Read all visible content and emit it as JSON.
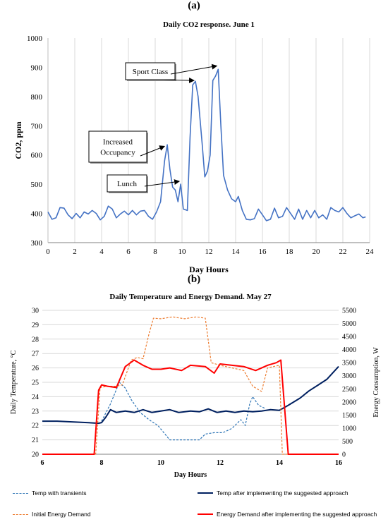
{
  "panel_labels": {
    "a": "(a)",
    "b": "(b)"
  },
  "chart_data": [
    {
      "type": "line",
      "title": "Daily CO2 response. June 1",
      "xlabel": "Day Hours",
      "ylabel": "CO2, ppm",
      "xlim": [
        0,
        24
      ],
      "ylim": [
        300,
        1000
      ],
      "x_ticks": [
        0,
        2,
        4,
        6,
        8,
        10,
        12,
        14,
        16,
        18,
        20,
        22,
        24
      ],
      "y_ticks": [
        300,
        400,
        500,
        600,
        700,
        800,
        900,
        1000
      ],
      "grid": "vertical",
      "series": [
        {
          "color": "#4472c4",
          "points": [
            [
              0,
              405
            ],
            [
              0.3,
              380
            ],
            [
              0.6,
              385
            ],
            [
              0.9,
              420
            ],
            [
              1.2,
              418
            ],
            [
              1.5,
              395
            ],
            [
              1.8,
              382
            ],
            [
              2.1,
              400
            ],
            [
              2.4,
              385
            ],
            [
              2.7,
              405
            ],
            [
              3.0,
              398
            ],
            [
              3.3,
              410
            ],
            [
              3.6,
              400
            ],
            [
              3.9,
              378
            ],
            [
              4.2,
              390
            ],
            [
              4.5,
              425
            ],
            [
              4.8,
              415
            ],
            [
              5.1,
              385
            ],
            [
              5.4,
              398
            ],
            [
              5.7,
              408
            ],
            [
              6.0,
              395
            ],
            [
              6.3,
              410
            ],
            [
              6.6,
              395
            ],
            [
              6.9,
              408
            ],
            [
              7.2,
              410
            ],
            [
              7.5,
              390
            ],
            [
              7.8,
              380
            ],
            [
              8.1,
              405
            ],
            [
              8.4,
              440
            ],
            [
              8.7,
              580
            ],
            [
              8.9,
              635
            ],
            [
              9.1,
              550
            ],
            [
              9.3,
              490
            ],
            [
              9.5,
              480
            ],
            [
              9.7,
              440
            ],
            [
              9.9,
              500
            ],
            [
              10.1,
              415
            ],
            [
              10.4,
              410
            ],
            [
              10.6,
              660
            ],
            [
              10.8,
              840
            ],
            [
              11.0,
              852
            ],
            [
              11.2,
              800
            ],
            [
              11.5,
              640
            ],
            [
              11.7,
              525
            ],
            [
              11.9,
              545
            ],
            [
              12.1,
              600
            ],
            [
              12.3,
              855
            ],
            [
              12.5,
              870
            ],
            [
              12.7,
              893
            ],
            [
              12.9,
              700
            ],
            [
              13.1,
              530
            ],
            [
              13.4,
              480
            ],
            [
              13.7,
              450
            ],
            [
              14.0,
              440
            ],
            [
              14.2,
              458
            ],
            [
              14.5,
              410
            ],
            [
              14.8,
              380
            ],
            [
              15.1,
              378
            ],
            [
              15.4,
              382
            ],
            [
              15.7,
              415
            ],
            [
              16.0,
              395
            ],
            [
              16.3,
              375
            ],
            [
              16.6,
              380
            ],
            [
              16.9,
              418
            ],
            [
              17.2,
              385
            ],
            [
              17.5,
              390
            ],
            [
              17.8,
              420
            ],
            [
              18.1,
              400
            ],
            [
              18.4,
              380
            ],
            [
              18.7,
              415
            ],
            [
              19.0,
              380
            ],
            [
              19.3,
              410
            ],
            [
              19.6,
              385
            ],
            [
              19.9,
              410
            ],
            [
              20.2,
              385
            ],
            [
              20.5,
              395
            ],
            [
              20.8,
              380
            ],
            [
              21.1,
              420
            ],
            [
              21.4,
              410
            ],
            [
              21.7,
              405
            ],
            [
              22.0,
              420
            ],
            [
              22.3,
              400
            ],
            [
              22.6,
              385
            ],
            [
              22.9,
              392
            ],
            [
              23.2,
              398
            ],
            [
              23.5,
              385
            ],
            [
              23.7,
              388
            ]
          ]
        }
      ],
      "annotations": [
        {
          "text": "Sport Class",
          "lines": [
            "Sport Class"
          ],
          "arrow_targets": [
            [
              11.0,
              850
            ],
            [
              12.7,
              900
            ]
          ]
        },
        {
          "text": "Increased Occupancy",
          "lines": [
            "Increased",
            "Occupancy"
          ],
          "arrow_targets": [
            [
              8.8,
              625
            ]
          ]
        },
        {
          "text": "Lunch",
          "lines": [
            "Lunch"
          ],
          "arrow_targets": [
            [
              9.9,
              505
            ]
          ]
        }
      ]
    },
    {
      "type": "line",
      "title": "Daily Temperature and Energy Demand. May 27",
      "xlabel": "Day Hours",
      "ylabel_left": "Daily Temperature, °C",
      "ylabel_right": "Energy Consumption, W",
      "xlim": [
        6,
        16
      ],
      "ylim_left": [
        20,
        30
      ],
      "ylim_right": [
        0,
        5500
      ],
      "x_ticks": [
        6,
        8,
        10,
        12,
        14,
        16
      ],
      "y_ticks_left": [
        20,
        21,
        22,
        23,
        24,
        25,
        26,
        27,
        28,
        29,
        30
      ],
      "y_ticks_right": [
        0,
        500,
        1000,
        1500,
        2000,
        2500,
        3000,
        3500,
        4000,
        4500,
        5000,
        5500
      ],
      "grid": "horizontal",
      "legend": "bottom",
      "series": [
        {
          "name": "Temp with transients",
          "axis": "left",
          "color": "#2e75b6",
          "dash": "3,2",
          "points": [
            [
              8,
              22.3
            ],
            [
              8.3,
              23.5
            ],
            [
              8.6,
              25.0
            ],
            [
              8.8,
              24.6
            ],
            [
              9.0,
              23.8
            ],
            [
              9.3,
              22.9
            ],
            [
              9.6,
              22.4
            ],
            [
              9.9,
              22.0
            ],
            [
              10.1,
              21.5
            ],
            [
              10.3,
              21.0
            ],
            [
              10.6,
              21.0
            ],
            [
              11.0,
              21.0
            ],
            [
              11.3,
              21.0
            ],
            [
              11.5,
              21.4
            ],
            [
              11.8,
              21.5
            ],
            [
              12.1,
              21.5
            ],
            [
              12.4,
              21.8
            ],
            [
              12.7,
              22.4
            ],
            [
              12.85,
              22.0
            ],
            [
              13.0,
              23.5
            ],
            [
              13.1,
              24.0
            ],
            [
              13.3,
              23.4
            ],
            [
              13.5,
              23.2
            ]
          ]
        },
        {
          "name": "Temp after implementing the suggested approach",
          "axis": "left",
          "color": "#002060",
          "dash": "",
          "points": [
            [
              6,
              22.3
            ],
            [
              6.5,
              22.3
            ],
            [
              7,
              22.25
            ],
            [
              7.5,
              22.2
            ],
            [
              7.9,
              22.15
            ],
            [
              8.0,
              22.2
            ],
            [
              8.15,
              22.6
            ],
            [
              8.3,
              23.1
            ],
            [
              8.5,
              22.9
            ],
            [
              8.8,
              23.0
            ],
            [
              9.1,
              22.9
            ],
            [
              9.4,
              23.1
            ],
            [
              9.7,
              22.9
            ],
            [
              10.0,
              23.0
            ],
            [
              10.3,
              23.1
            ],
            [
              10.6,
              22.9
            ],
            [
              11.0,
              23.0
            ],
            [
              11.3,
              22.95
            ],
            [
              11.6,
              23.15
            ],
            [
              11.9,
              22.9
            ],
            [
              12.2,
              23.0
            ],
            [
              12.5,
              22.9
            ],
            [
              12.8,
              23.0
            ],
            [
              13.1,
              22.95
            ],
            [
              13.4,
              23.0
            ],
            [
              13.7,
              23.1
            ],
            [
              14.0,
              23.05
            ],
            [
              14.3,
              23.4
            ],
            [
              14.7,
              23.9
            ],
            [
              15.0,
              24.4
            ],
            [
              15.3,
              24.8
            ],
            [
              15.6,
              25.2
            ],
            [
              16,
              26.1
            ]
          ]
        },
        {
          "name": "Initial Energy Demand",
          "axis": "right",
          "color": "#ed7d31",
          "dash": "3,2",
          "points": [
            [
              6,
              0
            ],
            [
              7.8,
              0
            ],
            [
              7.95,
              2550
            ],
            [
              8.2,
              2600
            ],
            [
              8.5,
              2600
            ],
            [
              8.7,
              2650
            ],
            [
              9.0,
              3600
            ],
            [
              9.2,
              3700
            ],
            [
              9.4,
              3650
            ],
            [
              9.6,
              4600
            ],
            [
              9.75,
              5200
            ],
            [
              10.0,
              5180
            ],
            [
              10.4,
              5250
            ],
            [
              10.8,
              5180
            ],
            [
              11.2,
              5250
            ],
            [
              11.5,
              5200
            ],
            [
              11.7,
              3500
            ],
            [
              12.0,
              3400
            ],
            [
              12.4,
              3300
            ],
            [
              12.8,
              3200
            ],
            [
              13.1,
              2600
            ],
            [
              13.4,
              2400
            ],
            [
              13.6,
              3300
            ],
            [
              13.8,
              3350
            ],
            [
              14.0,
              3400
            ],
            [
              14.1,
              0
            ],
            [
              16,
              0
            ]
          ]
        },
        {
          "name": "Energy Demand after implementing the suggested approach",
          "axis": "right",
          "color": "#ff0000",
          "dash": "",
          "points": [
            [
              6,
              0
            ],
            [
              7.75,
              0
            ],
            [
              7.9,
              2450
            ],
            [
              8.0,
              2650
            ],
            [
              8.2,
              2600
            ],
            [
              8.5,
              2550
            ],
            [
              8.8,
              3350
            ],
            [
              9.1,
              3600
            ],
            [
              9.4,
              3400
            ],
            [
              9.7,
              3250
            ],
            [
              10.0,
              3250
            ],
            [
              10.3,
              3300
            ],
            [
              10.7,
              3200
            ],
            [
              11.0,
              3400
            ],
            [
              11.5,
              3350
            ],
            [
              11.8,
              3100
            ],
            [
              12.0,
              3450
            ],
            [
              12.4,
              3400
            ],
            [
              12.8,
              3350
            ],
            [
              13.2,
              3200
            ],
            [
              13.6,
              3400
            ],
            [
              13.9,
              3500
            ],
            [
              14.05,
              3600
            ],
            [
              14.3,
              0
            ],
            [
              16,
              0
            ]
          ]
        }
      ]
    }
  ]
}
